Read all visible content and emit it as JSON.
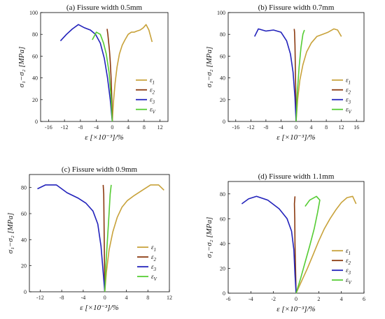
{
  "figure": {
    "eps_labels": [
      "ε",
      "1",
      "ε",
      "2",
      "ε",
      "3",
      "ε",
      "V"
    ]
  },
  "chart_data": [
    {
      "type": "line",
      "title": "(a) Fissure width 0.5mm",
      "xlabel": "ε [×10⁻³]/%",
      "ylabel": "σ₁−σ₂ [MPa]",
      "xlim": [
        -18,
        14
      ],
      "ylim": [
        0,
        100
      ],
      "xticks": [
        -16,
        -12,
        -8,
        -4,
        0,
        4,
        8,
        12
      ],
      "yticks": [
        0,
        20,
        40,
        60,
        80,
        100
      ],
      "legend": "right",
      "series": [
        {
          "name": "ε1",
          "color": "#c8a23a",
          "x": [
            0,
            0.3,
            0.7,
            1.2,
            1.8,
            2.5,
            3.2,
            4.0,
            4.8,
            5.5,
            6.2,
            7.0,
            7.8,
            8.5,
            9.2,
            10.0
          ],
          "y": [
            0,
            18,
            35,
            50,
            62,
            70,
            75,
            80,
            82,
            82,
            83,
            84,
            86,
            89,
            84,
            73
          ]
        },
        {
          "name": "ε2",
          "color": "#8b3a10",
          "x": [
            0,
            -0.1,
            -0.3,
            -0.5,
            -0.7,
            -0.9,
            -1.1,
            -1.3
          ],
          "y": [
            0,
            20,
            40,
            55,
            65,
            72,
            80,
            85
          ]
        },
        {
          "name": "ε3",
          "color": "#2222bb",
          "x": [
            0,
            -0.5,
            -1.2,
            -2.0,
            -3.0,
            -4.2,
            -5.5,
            -7.0,
            -8.5,
            -10,
            -11.5,
            -13
          ],
          "y": [
            0,
            20,
            40,
            58,
            72,
            80,
            84,
            86,
            89,
            85,
            80,
            74
          ]
        },
        {
          "name": "εV",
          "color": "#55cc33",
          "x": [
            0,
            -0.3,
            -0.8,
            -1.5,
            -2.2,
            -3.0,
            -4.0,
            -5.0
          ],
          "y": [
            0,
            22,
            45,
            62,
            72,
            80,
            82,
            75
          ]
        }
      ]
    },
    {
      "type": "line",
      "title": "(b) Fissure width 0.7mm",
      "xlabel": "ε [×10⁻³]/%",
      "ylabel": "σ₁−σ₂ [MPa]",
      "xlim": [
        -18,
        18
      ],
      "ylim": [
        0,
        100
      ],
      "xticks": [
        -16,
        -12,
        -8,
        -4,
        0,
        4,
        8,
        12,
        16
      ],
      "yticks": [
        0,
        20,
        40,
        60,
        80,
        100
      ],
      "legend": "right",
      "series": [
        {
          "name": "ε1",
          "color": "#c8a23a",
          "x": [
            0,
            0.4,
            1.0,
            1.8,
            2.8,
            4.0,
            5.5,
            7.0,
            8.5,
            10.0,
            11.0,
            12.0
          ],
          "y": [
            0,
            20,
            38,
            52,
            64,
            72,
            78,
            80,
            82,
            85,
            84,
            78
          ]
        },
        {
          "name": "ε2",
          "color": "#8b3a10",
          "x": [
            0,
            -0.1,
            -0.2,
            -0.3,
            -0.4,
            -0.5
          ],
          "y": [
            0,
            25,
            50,
            70,
            82,
            85
          ]
        },
        {
          "name": "ε3",
          "color": "#2222bb",
          "x": [
            0,
            -0.3,
            -0.8,
            -1.5,
            -2.5,
            -4.0,
            -6.0,
            -8.0,
            -10.0,
            -11.0
          ],
          "y": [
            0,
            22,
            45,
            62,
            74,
            82,
            84,
            83,
            85,
            78
          ]
        },
        {
          "name": "εV",
          "color": "#55cc33",
          "x": [
            0,
            0.3,
            0.8,
            1.3,
            1.8,
            2.2
          ],
          "y": [
            0,
            25,
            50,
            68,
            80,
            84
          ]
        }
      ]
    },
    {
      "type": "line",
      "title": "(c) Fissure width 0.9mm",
      "xlabel": "ε [×10⁻³]/%",
      "ylabel": "σ₁−σ₂ [MPa]",
      "xlim": [
        -14,
        12
      ],
      "ylim": [
        0,
        90
      ],
      "xticks": [
        -12,
        -8,
        -4,
        0,
        4,
        8,
        12
      ],
      "yticks": [
        0,
        20,
        40,
        60,
        80
      ],
      "legend": "right",
      "series": [
        {
          "name": "ε1",
          "color": "#c8a23a",
          "x": [
            0,
            0.3,
            0.8,
            1.5,
            2.3,
            3.2,
            4.2,
            5.5,
            7.0,
            8.5,
            10.0,
            11.0
          ],
          "y": [
            0,
            15,
            32,
            46,
            57,
            65,
            70,
            74,
            78,
            82,
            82,
            78
          ]
        },
        {
          "name": "ε2",
          "color": "#8b3a10",
          "x": [
            0,
            -0.05,
            -0.1,
            -0.15,
            -0.2,
            -0.3
          ],
          "y": [
            0,
            20,
            40,
            60,
            75,
            82
          ]
        },
        {
          "name": "ε3",
          "color": "#2222bb",
          "x": [
            0,
            -0.3,
            -0.7,
            -1.3,
            -2.2,
            -3.5,
            -5.0,
            -7.0,
            -9.0,
            -11.0,
            -12.5
          ],
          "y": [
            0,
            15,
            35,
            52,
            62,
            68,
            72,
            76,
            82,
            82,
            79
          ]
        },
        {
          "name": "εV",
          "color": "#55cc33",
          "x": [
            0,
            0.2,
            0.5,
            0.8,
            1.0,
            1.2
          ],
          "y": [
            0,
            20,
            40,
            60,
            75,
            82
          ]
        }
      ]
    },
    {
      "type": "line",
      "title": "(d) Fissure width 1.1mm",
      "xlabel": "ε [×10⁻³]/%",
      "ylabel": "σ₁−σ₂ [MPa]",
      "xlim": [
        -6,
        6
      ],
      "ylim": [
        0,
        90
      ],
      "xticks": [
        -6,
        -4,
        -2,
        0,
        2,
        4,
        6
      ],
      "yticks": [
        0,
        20,
        40,
        60,
        80
      ],
      "legend": "right",
      "series": [
        {
          "name": "ε1",
          "color": "#c8a23a",
          "x": [
            0,
            0.5,
            1.0,
            1.5,
            2.0,
            2.5,
            3.0,
            3.5,
            4.0,
            4.5,
            5.0,
            5.3
          ],
          "y": [
            0,
            10,
            20,
            31,
            42,
            52,
            60,
            67,
            73,
            77,
            78,
            72
          ]
        },
        {
          "name": "ε2",
          "color": "#8b3a10",
          "x": [
            0,
            -0.05,
            -0.1,
            -0.12,
            -0.15,
            -0.1
          ],
          "y": [
            0,
            20,
            40,
            60,
            72,
            78
          ]
        },
        {
          "name": "ε3",
          "color": "#2222bb",
          "x": [
            0,
            -0.1,
            -0.2,
            -0.4,
            -0.8,
            -1.5,
            -2.5,
            -3.5,
            -4.2,
            -4.8
          ],
          "y": [
            0,
            15,
            35,
            50,
            60,
            68,
            75,
            78,
            76,
            72
          ]
        },
        {
          "name": "εV",
          "color": "#55cc33",
          "x": [
            0,
            0.4,
            0.8,
            1.2,
            1.6,
            1.9,
            2.1,
            1.8,
            1.2,
            0.8
          ],
          "y": [
            0,
            12,
            25,
            38,
            52,
            65,
            75,
            78,
            75,
            70
          ]
        }
      ]
    }
  ]
}
